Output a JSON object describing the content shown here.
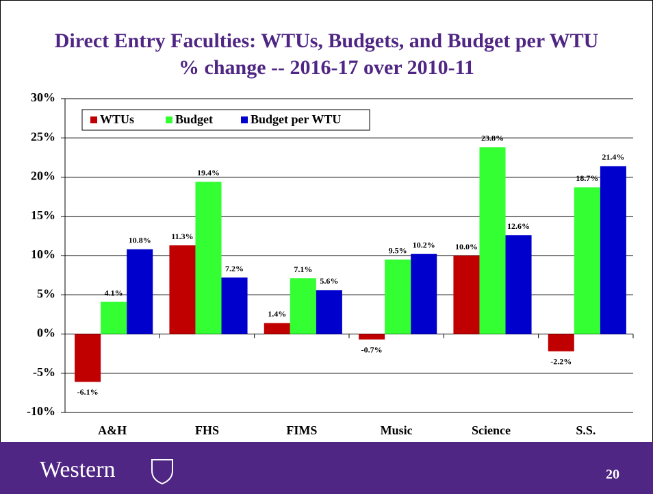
{
  "chart_data": {
    "type": "bar",
    "title": "Direct Entry Faculties: WTUs, Budgets, and Budget per WTU",
    "subtitle": "% change -- 2016-17 over 2010-11",
    "categories": [
      "A&H",
      "FHS",
      "FIMS",
      "Music",
      "Science",
      "S.S."
    ],
    "series": [
      {
        "name": "WTUs",
        "color": "#c00000",
        "values": [
          -6.1,
          11.3,
          1.4,
          -0.7,
          10.0,
          -2.2
        ],
        "value_labels": [
          "-6.1%",
          "11.3%",
          "1.4%",
          "-0.7%",
          "10.0%",
          "-2.2%"
        ]
      },
      {
        "name": "Budget",
        "color": "#33ff33",
        "values": [
          4.1,
          19.4,
          7.1,
          9.5,
          23.8,
          18.7
        ],
        "value_labels": [
          "4.1%",
          "19.4%",
          "7.1%",
          "9.5%",
          "23.8%",
          "18.7%"
        ]
      },
      {
        "name": "Budget per WTU",
        "color": "#0000cc",
        "values": [
          10.8,
          7.2,
          5.6,
          10.2,
          12.6,
          21.4
        ],
        "value_labels": [
          "10.8%",
          "7.2%",
          "5.6%",
          "10.2%",
          "12.6%",
          "21.4%"
        ]
      }
    ],
    "ylim": [
      -10,
      30
    ],
    "yticks": [
      {
        "value": -10,
        "label": "-10%"
      },
      {
        "value": -5,
        "label": "-5%"
      },
      {
        "value": 0,
        "label": "0%"
      },
      {
        "value": 5,
        "label": "5%"
      },
      {
        "value": 10,
        "label": "10%"
      },
      {
        "value": 15,
        "label": "15%"
      },
      {
        "value": 20,
        "label": "20%"
      },
      {
        "value": 25,
        "label": "25%"
      },
      {
        "value": 30,
        "label": "30%"
      }
    ],
    "grid": true,
    "legend": "top-left"
  },
  "footer": {
    "logo": "Western",
    "page": "20"
  }
}
